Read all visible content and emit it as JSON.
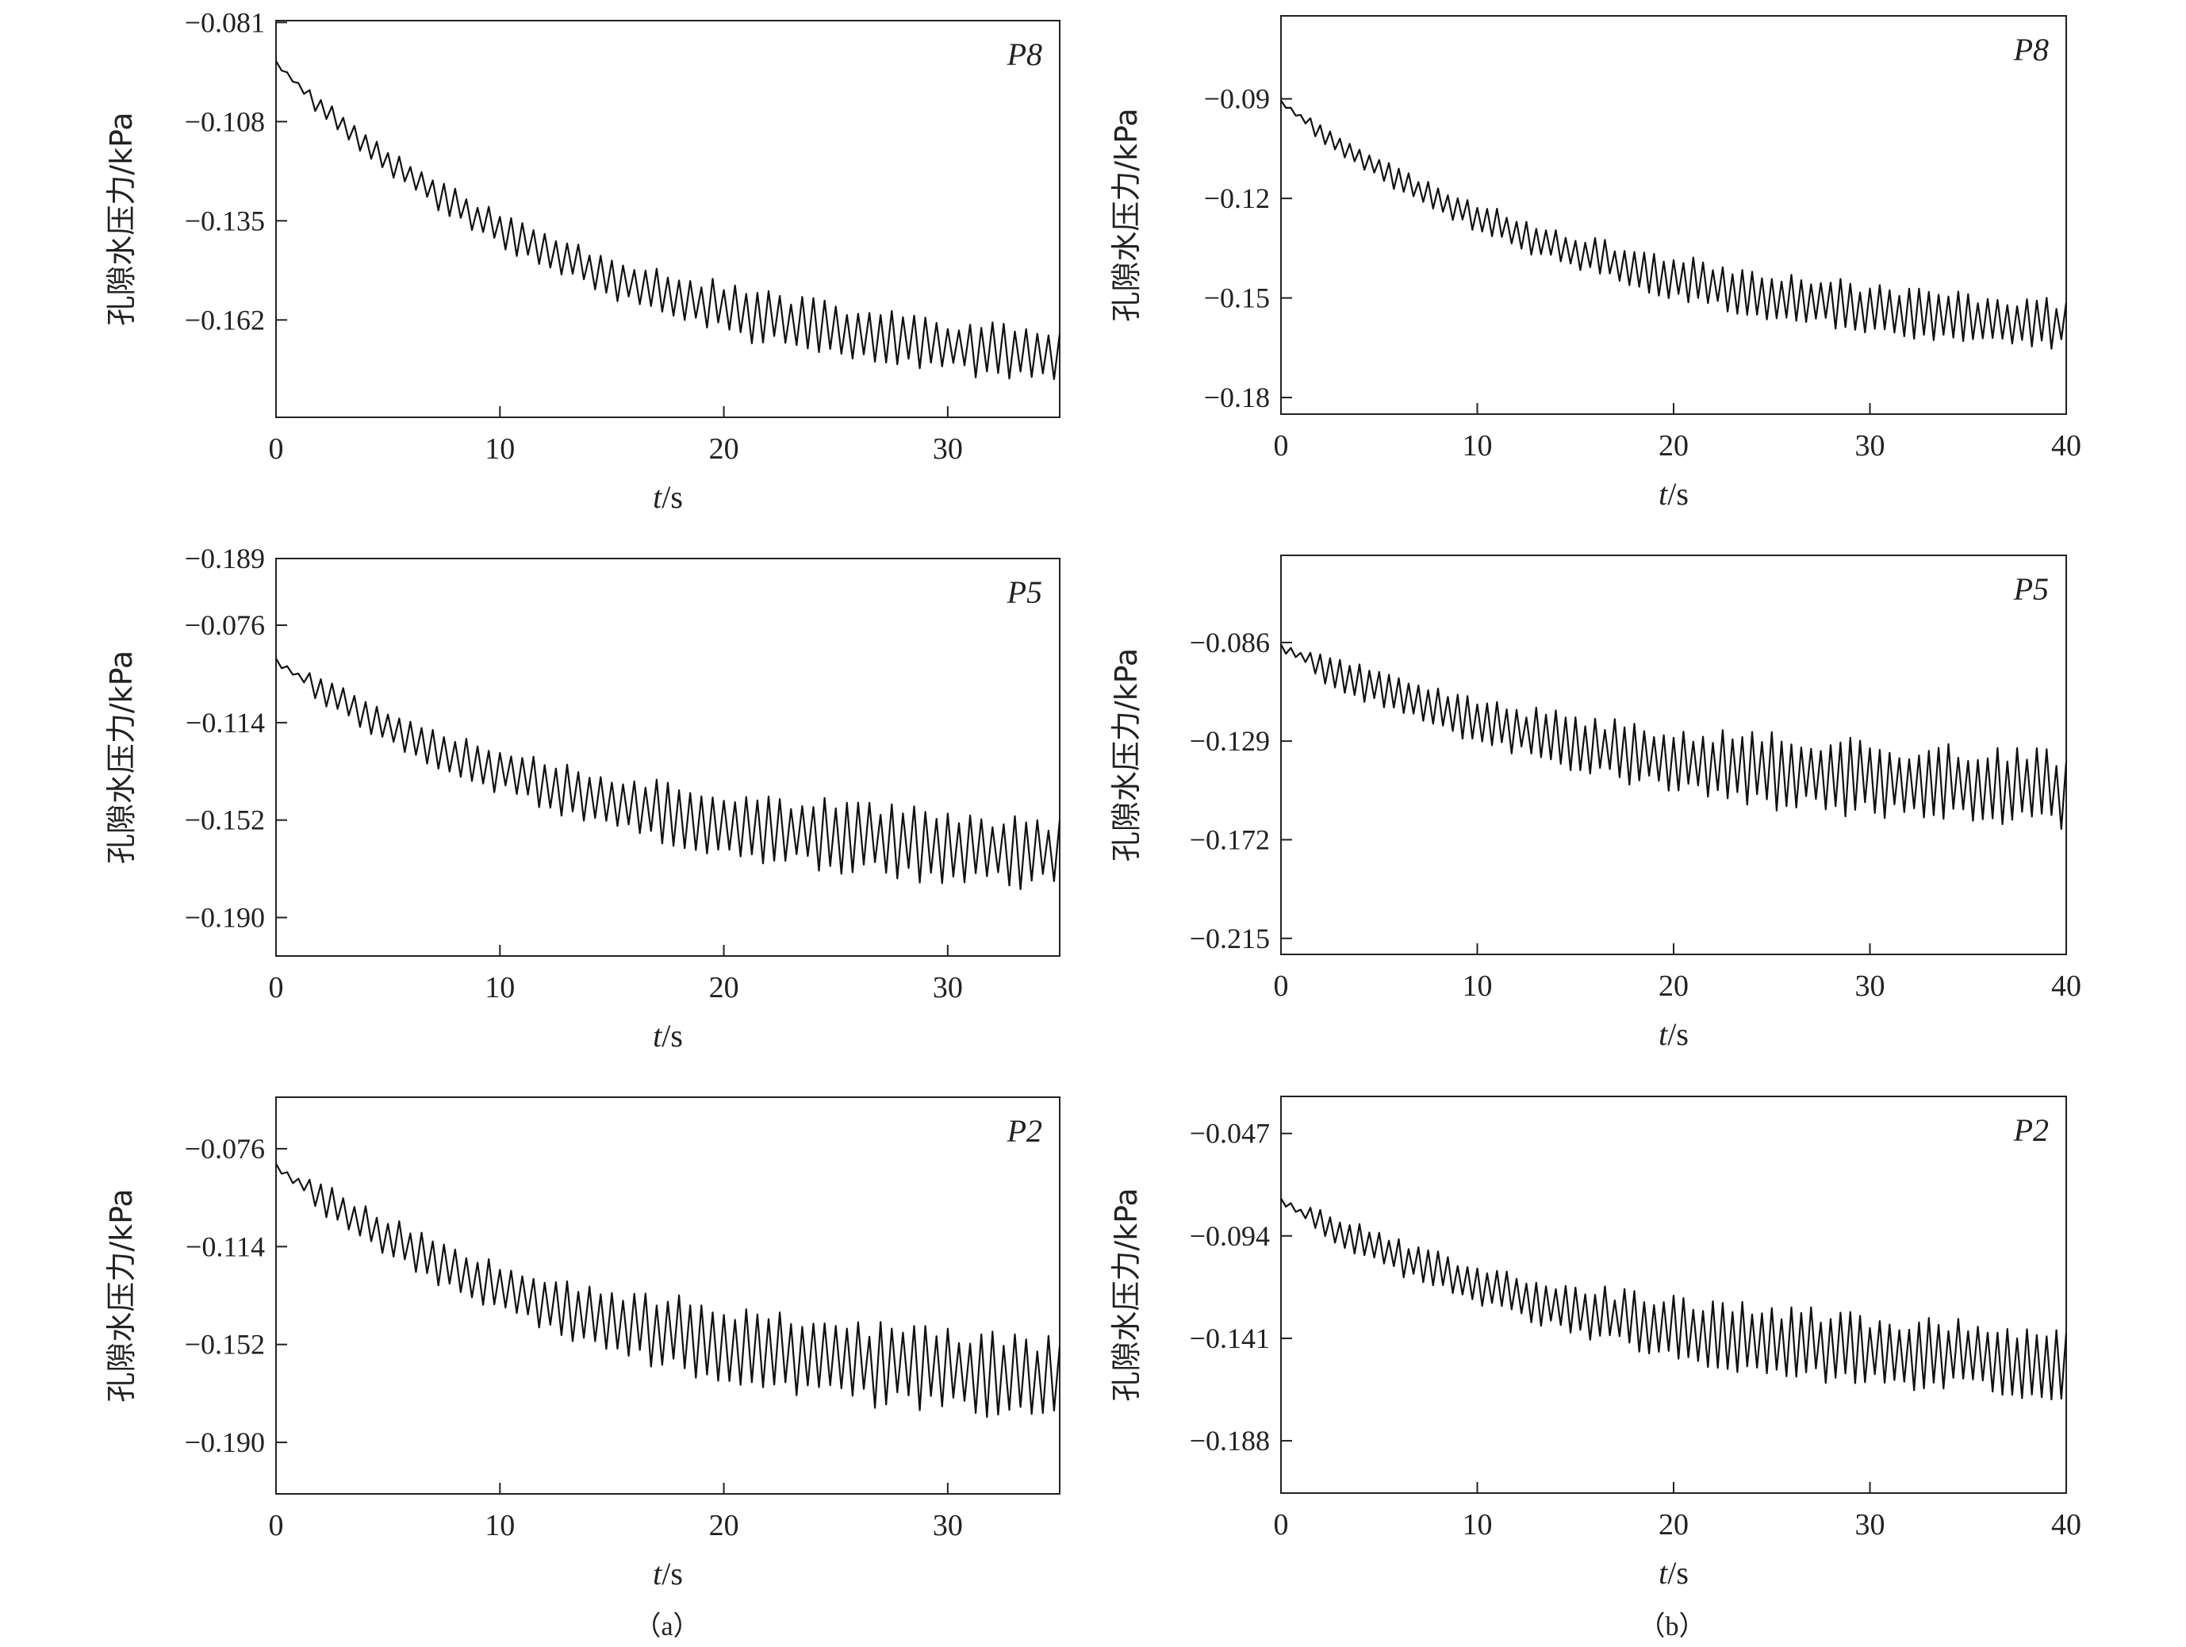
{
  "figure": {
    "captions": [
      "（a）",
      "（b）"
    ]
  },
  "chart_data": [
    {
      "type": "line",
      "column": "a",
      "tag": "P8",
      "title": "",
      "xlabel_italic": "t",
      "xlabel_unit": "/s",
      "ylabel": "孔隙水压力/kPa",
      "xlim": [
        0,
        35
      ],
      "xticks": [
        0,
        10,
        20,
        30
      ],
      "ylim": [
        -0.1885,
        -0.0805
      ],
      "yticks": [
        -0.081,
        -0.108,
        -0.135,
        -0.162
      ],
      "ytick_labels": [
        "−0.081",
        "−0.108",
        "−0.135",
        "−0.162"
      ],
      "series": [
        {
          "name": "P8",
          "start": -0.092,
          "end": -0.172,
          "amp0": 0.005,
          "amp1": 0.016,
          "period": 0.5,
          "seed": 11
        }
      ]
    },
    {
      "type": "line",
      "column": "b",
      "tag": "P8",
      "title": "",
      "xlabel_italic": "t",
      "xlabel_unit": "/s",
      "ylabel": "孔隙水压力/kPa",
      "xlim": [
        0,
        40
      ],
      "xticks": [
        0,
        10,
        20,
        30,
        40
      ],
      "ylim": [
        -0.185,
        -0.065
      ],
      "yticks": [
        -0.09,
        -0.12,
        -0.15,
        -0.18
      ],
      "ytick_labels": [
        "−0.09",
        "−0.12",
        "−0.15",
        "−0.18"
      ],
      "series": [
        {
          "name": "P8",
          "start": -0.091,
          "end": -0.158,
          "amp0": 0.005,
          "amp1": 0.016,
          "period": 0.5,
          "seed": 23
        }
      ]
    },
    {
      "type": "line",
      "column": "a",
      "tag": "P5",
      "title": "",
      "xlabel_italic": "t",
      "xlabel_unit": "/s",
      "ylabel": "孔隙水压力/kPa",
      "xlim": [
        0,
        35
      ],
      "xticks": [
        0,
        10,
        20,
        30
      ],
      "ylim": [
        -0.205,
        -0.05
      ],
      "yticks": [
        -0.076,
        -0.114,
        -0.152,
        -0.19
      ],
      "ytick_labels": [
        "−0.076",
        "−0.114",
        "−0.152",
        "−0.190"
      ],
      "top_label": "−0.189",
      "series": [
        {
          "name": "P5",
          "start": -0.09,
          "end": -0.165,
          "amp0": 0.01,
          "amp1": 0.03,
          "period": 0.5,
          "seed": 37
        }
      ]
    },
    {
      "type": "line",
      "column": "b",
      "tag": "P5",
      "title": "",
      "xlabel_italic": "t",
      "xlabel_unit": "/s",
      "ylabel": "孔隙水压力/kPa",
      "xlim": [
        0,
        40
      ],
      "xticks": [
        0,
        10,
        20,
        30,
        40
      ],
      "ylim": [
        -0.222,
        -0.048
      ],
      "yticks": [
        -0.086,
        -0.129,
        -0.172,
        -0.215
      ],
      "ytick_labels": [
        "−0.086",
        "−0.129",
        "−0.172",
        "−0.215"
      ],
      "series": [
        {
          "name": "P5",
          "start": -0.088,
          "end": -0.15,
          "amp0": 0.012,
          "amp1": 0.035,
          "period": 0.5,
          "seed": 41
        }
      ]
    },
    {
      "type": "line",
      "column": "a",
      "tag": "P2",
      "title": "",
      "xlabel_italic": "t",
      "xlabel_unit": "/s",
      "ylabel": "孔隙水压力/kPa",
      "xlim": [
        0,
        35
      ],
      "xticks": [
        0,
        10,
        20,
        30
      ],
      "ylim": [
        -0.21,
        -0.056
      ],
      "yticks": [
        -0.076,
        -0.114,
        -0.152,
        -0.19
      ],
      "ytick_labels": [
        "−0.076",
        "−0.114",
        "−0.152",
        "−0.190"
      ],
      "series": [
        {
          "name": "P2",
          "start": -0.083,
          "end": -0.165,
          "amp0": 0.012,
          "amp1": 0.035,
          "period": 0.5,
          "seed": 53
        }
      ]
    },
    {
      "type": "line",
      "column": "b",
      "tag": "P2",
      "title": "",
      "xlabel_italic": "t",
      "xlabel_unit": "/s",
      "ylabel": "孔隙水压力/kPa",
      "xlim": [
        0,
        40
      ],
      "xticks": [
        0,
        10,
        20,
        30,
        40
      ],
      "ylim": [
        -0.212,
        -0.03
      ],
      "yticks": [
        -0.047,
        -0.094,
        -0.141,
        -0.188
      ],
      "ytick_labels": [
        "−0.047",
        "−0.094",
        "−0.141",
        "−0.188"
      ],
      "series": [
        {
          "name": "P2",
          "start": -0.078,
          "end": -0.152,
          "amp0": 0.012,
          "amp1": 0.035,
          "period": 0.5,
          "seed": 67
        }
      ]
    }
  ]
}
